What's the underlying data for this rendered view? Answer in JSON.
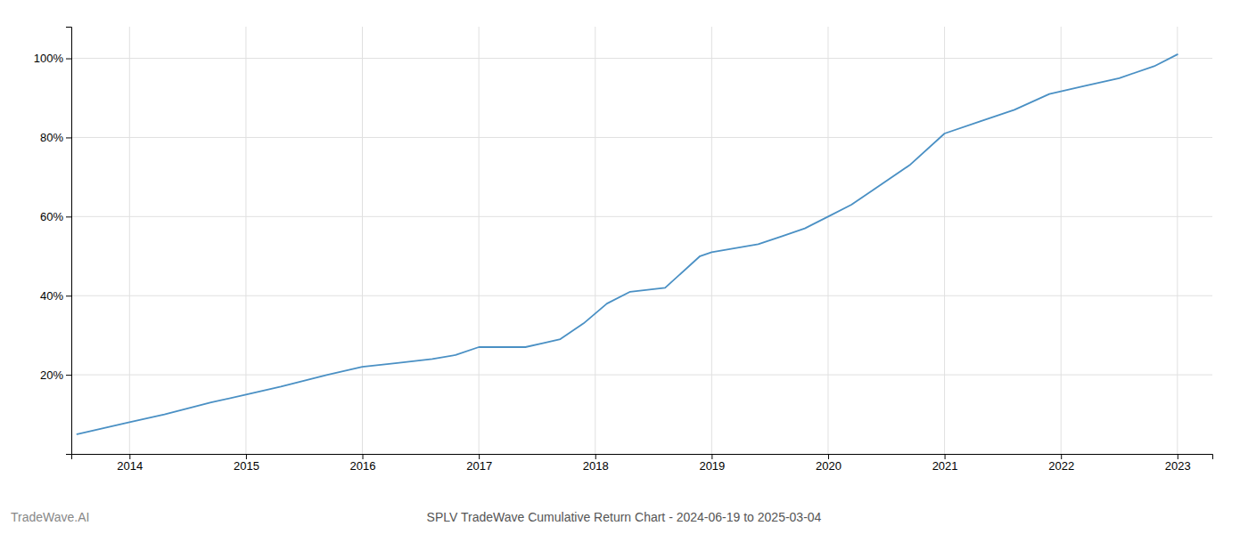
{
  "chart_data": {
    "type": "line",
    "title": "SPLV TradeWave Cumulative Return Chart - 2024-06-19 to 2025-03-04",
    "annotations": [
      "TradeWave.AI"
    ],
    "x": [
      2013.55,
      2013.7,
      2014.0,
      2014.3,
      2014.7,
      2015.0,
      2015.3,
      2015.7,
      2016.0,
      2016.3,
      2016.6,
      2016.8,
      2017.0,
      2017.2,
      2017.4,
      2017.55,
      2017.7,
      2017.9,
      2018.1,
      2018.3,
      2018.6,
      2018.9,
      2019.0,
      2019.2,
      2019.4,
      2019.6,
      2019.8,
      2020.0,
      2020.2,
      2020.4,
      2020.7,
      2021.0,
      2021.3,
      2021.6,
      2021.9,
      2022.2,
      2022.5,
      2022.8,
      2023.0
    ],
    "values": [
      5,
      6,
      8,
      10,
      13,
      15,
      17,
      20,
      22,
      23,
      24,
      25,
      27,
      27,
      27,
      28,
      29,
      33,
      38,
      41,
      42,
      50,
      51,
      52,
      53,
      55,
      57,
      60,
      63,
      67,
      73,
      81,
      84,
      87,
      91,
      93,
      95,
      98,
      101
    ],
    "color": "#4a90c4",
    "xlim": [
      2013.5,
      2023.3
    ],
    "ylim": [
      0,
      108
    ],
    "xticks": [
      2014,
      2015,
      2016,
      2017,
      2018,
      2019,
      2020,
      2021,
      2022,
      2023
    ],
    "yticks": [
      {
        "value": 20,
        "label": "20%"
      },
      {
        "value": 40,
        "label": "40%"
      },
      {
        "value": 60,
        "label": "60%"
      },
      {
        "value": 80,
        "label": "80%"
      },
      {
        "value": 100,
        "label": "100%"
      }
    ],
    "grid": true
  }
}
